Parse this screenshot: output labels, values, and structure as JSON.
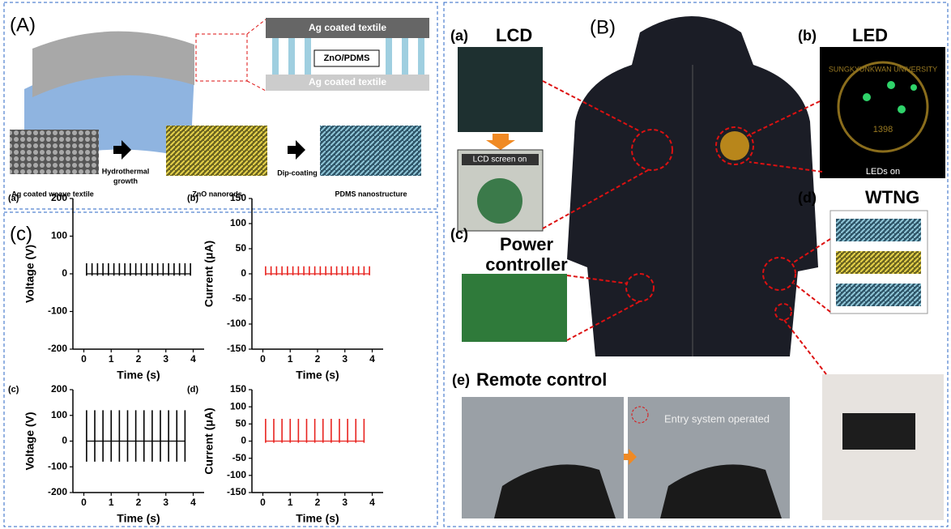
{
  "panel_A": {
    "label": "(A)",
    "layer_top": "Ag coated textile",
    "layer_middle": "ZnO/PDMS",
    "layer_bottom": "Ag coated textile",
    "steps": [
      "Ag coated weave textile",
      "ZnO nanorods",
      "PDMS nanostructure"
    ],
    "arrow_1": [
      "Hydrothermal",
      "growth"
    ],
    "arrow_2": "Dip-coating"
  },
  "panel_B": {
    "label": "(B)",
    "lcd": {
      "tag": "(a)",
      "title": "LCD",
      "caption": "LCD screen on"
    },
    "led": {
      "tag": "(b)",
      "title": "LED",
      "caption": "LEDs on",
      "logo_text": "SUNGKYUNKWAN UNIVERSITY",
      "logo_year": "1398"
    },
    "controller": {
      "tag": "(c)",
      "title": [
        "Power",
        "controller"
      ]
    },
    "wtng": {
      "tag": "(d)",
      "title": "WTNG"
    },
    "remote": {
      "tag": "(e)",
      "title": "Remote control",
      "caption": "Entry system operated"
    }
  },
  "panel_C": {
    "label": "(c)"
  },
  "chart_data": [
    {
      "type": "spike",
      "tag": "(a)",
      "y_label": "Voltage (V)",
      "x_label": "Time (s)",
      "color": "#000000",
      "x": [
        0.1,
        0.3,
        0.5,
        0.7,
        0.9,
        1.1,
        1.3,
        1.5,
        1.7,
        1.9,
        2.1,
        2.3,
        2.5,
        2.7,
        2.9,
        3.1,
        3.3,
        3.5,
        3.7,
        3.9
      ],
      "values": [
        28,
        28,
        28,
        28,
        28,
        28,
        28,
        28,
        28,
        28,
        28,
        28,
        28,
        28,
        28,
        28,
        28,
        28,
        28,
        28
      ],
      "lows": [
        -5,
        -5,
        -5,
        -5,
        -5,
        -5,
        -5,
        -5,
        -5,
        -5,
        -5,
        -5,
        -5,
        -5,
        -5,
        -5,
        -5,
        -5,
        -5,
        -5
      ],
      "xlim": [
        -0.4,
        4.4
      ],
      "xticks": [
        0,
        1,
        2,
        3,
        4
      ],
      "ylim": [
        -200,
        200
      ],
      "yticks": [
        -200,
        -100,
        0,
        100,
        200
      ]
    },
    {
      "type": "spike",
      "tag": "(b)",
      "y_label": "Current (μA)",
      "x_label": "Time (s)",
      "color": "#e8231f",
      "x": [
        0.1,
        0.3,
        0.5,
        0.7,
        0.9,
        1.1,
        1.3,
        1.5,
        1.7,
        1.9,
        2.1,
        2.3,
        2.5,
        2.7,
        2.9,
        3.1,
        3.3,
        3.5,
        3.7,
        3.9
      ],
      "values": [
        15,
        15,
        15,
        15,
        15,
        15,
        15,
        15,
        15,
        15,
        15,
        15,
        15,
        15,
        15,
        15,
        15,
        15,
        15,
        15
      ],
      "lows": [
        -3,
        -3,
        -3,
        -3,
        -3,
        -3,
        -3,
        -3,
        -3,
        -3,
        -3,
        -3,
        -3,
        -3,
        -3,
        -3,
        -3,
        -3,
        -3,
        -3
      ],
      "xlim": [
        -0.4,
        4.4
      ],
      "xticks": [
        0,
        1,
        2,
        3,
        4
      ],
      "ylim": [
        -150,
        150
      ],
      "yticks": [
        -150,
        -100,
        -50,
        0,
        50,
        100,
        150
      ]
    },
    {
      "type": "spike",
      "tag": "(c)",
      "y_label": "Voltage (V)",
      "x_label": "Time (s)",
      "color": "#000000",
      "x": [
        0.1,
        0.4,
        0.7,
        1.0,
        1.3,
        1.6,
        1.9,
        2.2,
        2.5,
        2.8,
        3.1,
        3.4,
        3.7
      ],
      "values": [
        120,
        120,
        120,
        120,
        120,
        120,
        120,
        120,
        120,
        120,
        120,
        120,
        120
      ],
      "lows": [
        -80,
        -80,
        -80,
        -80,
        -80,
        -80,
        -80,
        -80,
        -80,
        -80,
        -80,
        -80,
        -80
      ],
      "xlim": [
        -0.4,
        4.4
      ],
      "xticks": [
        0,
        1,
        2,
        3,
        4
      ],
      "ylim": [
        -200,
        200
      ],
      "yticks": [
        -200,
        -100,
        0,
        100,
        200
      ]
    },
    {
      "type": "spike",
      "tag": "(d)",
      "y_label": "Current (μA)",
      "x_label": "Time (s)",
      "color": "#e8231f",
      "x": [
        0.1,
        0.4,
        0.7,
        1.0,
        1.3,
        1.6,
        1.9,
        2.2,
        2.5,
        2.8,
        3.1,
        3.4,
        3.7
      ],
      "values": [
        65,
        65,
        65,
        65,
        65,
        65,
        65,
        65,
        65,
        65,
        65,
        65,
        65
      ],
      "lows": [
        -5,
        -5,
        -5,
        -5,
        -5,
        -5,
        -5,
        -5,
        -5,
        -5,
        -5,
        -5,
        -5
      ],
      "xlim": [
        -0.4,
        4.4
      ],
      "xticks": [
        0,
        1,
        2,
        3,
        4
      ],
      "ylim": [
        -150,
        150
      ],
      "yticks": [
        -150,
        -100,
        -50,
        0,
        50,
        100,
        150
      ]
    }
  ]
}
